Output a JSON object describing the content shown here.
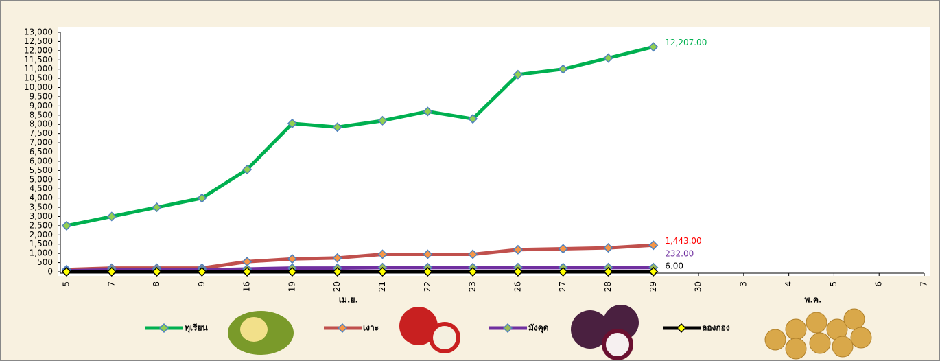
{
  "chart_data": {
    "type": "line",
    "categories": [
      "5",
      "7",
      "8",
      "9",
      "16",
      "19",
      "20",
      "21",
      "22",
      "23",
      "26",
      "27",
      "28",
      "29",
      "30",
      "3",
      "4",
      "5",
      "6",
      "7"
    ],
    "x_group_labels": [
      "เม.ย.",
      "พ.ค."
    ],
    "series": [
      {
        "name": "ทุเรียน",
        "color": "#00b050",
        "marker_color": "#92d050",
        "label_color": "#00b050",
        "values": [
          2500,
          3000,
          3500,
          4000,
          5550,
          8050,
          7850,
          8200,
          8700,
          8300,
          10700,
          11000,
          11600,
          12207,
          null,
          null,
          null,
          null,
          null,
          null
        ],
        "value_labels": [
          null,
          null,
          null,
          null,
          null,
          null,
          null,
          null,
          null,
          null,
          null,
          null,
          null,
          "12,207.00",
          null,
          null,
          null,
          null,
          null,
          null
        ]
      },
      {
        "name": "เงาะ",
        "color": "#c0504d",
        "marker_color": "#f79646",
        "label_color": "#ff0000",
        "values": [
          120,
          200,
          200,
          200,
          550,
          700,
          750,
          950,
          950,
          950,
          1200,
          1250,
          1300,
          1443,
          null,
          null,
          null,
          null,
          null,
          null
        ],
        "value_labels": [
          null,
          null,
          null,
          null,
          null,
          null,
          null,
          null,
          null,
          null,
          null,
          null,
          null,
          "1,443.00",
          null,
          null,
          null,
          null,
          null,
          null
        ]
      },
      {
        "name": "มังคุด",
        "color": "#7030a0",
        "marker_color": "#9bbb59",
        "label_color": "#7030a0",
        "values": [
          50,
          100,
          100,
          100,
          150,
          200,
          200,
          230,
          230,
          230,
          230,
          230,
          230,
          232,
          null,
          null,
          null,
          null,
          null,
          null
        ],
        "value_labels": [
          null,
          null,
          null,
          null,
          null,
          null,
          null,
          null,
          null,
          null,
          null,
          null,
          null,
          "232.00",
          null,
          null,
          null,
          null,
          null,
          null
        ]
      },
      {
        "name": "ลองกอง",
        "color": "#000000",
        "marker_color": "#ffff00",
        "label_color": "#000000",
        "values": [
          0,
          0,
          0,
          0,
          0,
          0,
          0,
          0,
          0,
          0,
          0,
          0,
          0,
          6,
          null,
          null,
          null,
          null,
          null,
          null
        ],
        "value_labels": [
          null,
          null,
          null,
          null,
          null,
          null,
          null,
          null,
          null,
          null,
          null,
          null,
          null,
          "6.00",
          null,
          null,
          null,
          null,
          null,
          null
        ]
      }
    ],
    "ylim": [
      0,
      13000
    ],
    "yticks": [
      0,
      500,
      {
        "value": 1000,
        "label": "1,000"
      },
      {
        "value": 1500,
        "label": "1,500"
      },
      {
        "value": 2000,
        "label": "2,000"
      },
      {
        "value": 2500,
        "label": "2,500"
      },
      {
        "value": 3000,
        "label": "3,000"
      },
      {
        "value": 3500,
        "label": "3,500"
      },
      {
        "value": 4000,
        "label": "4,000"
      },
      {
        "value": 4500,
        "label": "4,500"
      },
      {
        "value": 5000,
        "label": "5,000"
      },
      {
        "value": 5500,
        "label": "5,500"
      },
      {
        "value": 6000,
        "label": "6,000"
      },
      {
        "value": 6500,
        "label": "6,500"
      },
      {
        "value": 7000,
        "label": "7,000"
      },
      {
        "value": 7500,
        "label": "7,500"
      },
      {
        "value": 8000,
        "label": "8,000"
      },
      {
        "value": 8500,
        "label": "8,500"
      },
      {
        "value": 9000,
        "label": "9,000"
      },
      {
        "value": 9500,
        "label": "9,500"
      },
      {
        "value": 10000,
        "label": "10,000"
      },
      {
        "value": 10500,
        "label": "10,500"
      },
      {
        "value": 11000,
        "label": "11,000"
      },
      {
        "value": 11500,
        "label": "11,500"
      },
      {
        "value": 12000,
        "label": "12,000"
      },
      {
        "value": 12500,
        "label": "12,500"
      },
      {
        "value": 13000,
        "label": "13,000"
      }
    ],
    "grid": false
  }
}
